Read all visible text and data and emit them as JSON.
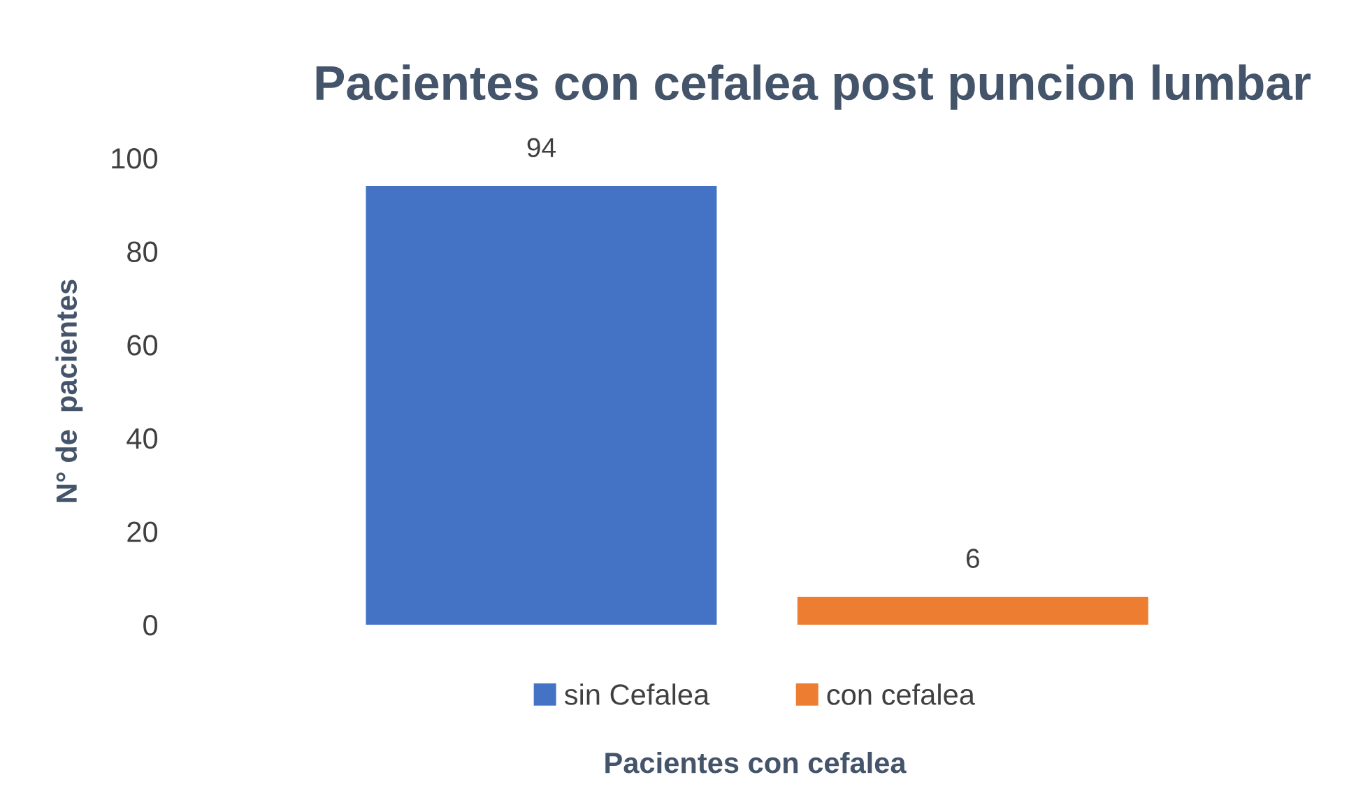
{
  "chart_data": {
    "type": "bar",
    "title": "Pacientes con cefalea post puncion lumbar",
    "xlabel": "Pacientes con cefalea",
    "ylabel": "N° de  pacientes",
    "categories": [
      null
    ],
    "series": [
      {
        "name": "sin Cefalea",
        "color": "#4472c4",
        "values": [
          94
        ]
      },
      {
        "name": "con cefalea",
        "color": "#ed7d31",
        "values": [
          6
        ]
      }
    ],
    "ylim": [
      0,
      100
    ],
    "yticks": [
      0,
      20,
      40,
      60,
      80,
      100
    ],
    "grid": false,
    "legend": "bottom",
    "data_labels": true
  }
}
